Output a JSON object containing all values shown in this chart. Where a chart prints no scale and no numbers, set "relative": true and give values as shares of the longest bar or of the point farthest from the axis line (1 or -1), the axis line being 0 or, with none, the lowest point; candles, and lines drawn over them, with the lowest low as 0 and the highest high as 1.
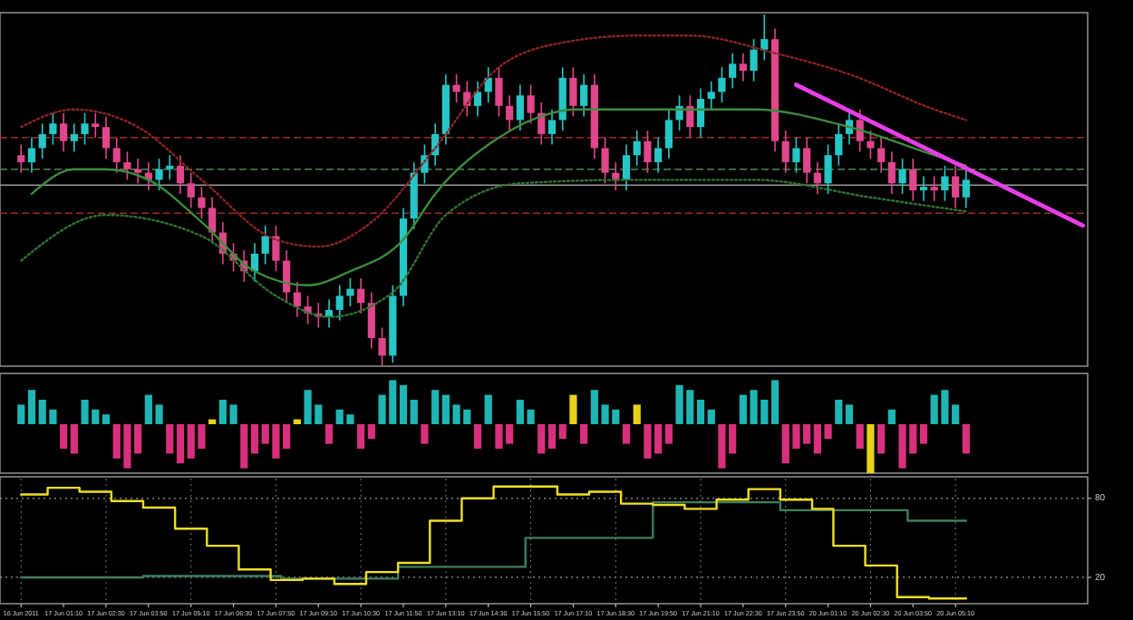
{
  "chart_data": [
    {
      "type": "candlestick",
      "relative": true,
      "categories": [
        null,
        null,
        null,
        null,
        null,
        null,
        null,
        null,
        null,
        null,
        null,
        null,
        null,
        null,
        null,
        null,
        null,
        null,
        null,
        null,
        null,
        null,
        null,
        null,
        null,
        null,
        null,
        null,
        null,
        null,
        null,
        null,
        null,
        null,
        null,
        null,
        null,
        null,
        null,
        null,
        null,
        null,
        null,
        null,
        null,
        null,
        null,
        null,
        null,
        null,
        null,
        null,
        null,
        null,
        null,
        null,
        null,
        null,
        null,
        null,
        null,
        null,
        null,
        null,
        null,
        null,
        null,
        null,
        null,
        null,
        null,
        null,
        null,
        null,
        null,
        null,
        null,
        null,
        null,
        null,
        null,
        null,
        null,
        null,
        null,
        null,
        null,
        null,
        null,
        null,
        null,
        null,
        null,
        null,
        null,
        null,
        null,
        null,
        null,
        null,
        null
      ],
      "ohlc": [
        [
          0.6,
          0.63,
          0.55,
          0.58
        ],
        [
          0.58,
          0.65,
          0.55,
          0.62
        ],
        [
          0.62,
          0.69,
          0.59,
          0.66
        ],
        [
          0.66,
          0.72,
          0.63,
          0.69
        ],
        [
          0.69,
          0.72,
          0.61,
          0.64
        ],
        [
          0.64,
          0.69,
          0.61,
          0.66
        ],
        [
          0.66,
          0.72,
          0.63,
          0.69
        ],
        [
          0.69,
          0.72,
          0.65,
          0.68
        ],
        [
          0.68,
          0.71,
          0.59,
          0.62
        ],
        [
          0.62,
          0.65,
          0.55,
          0.58
        ],
        [
          0.58,
          0.61,
          0.53,
          0.56
        ],
        [
          0.56,
          0.59,
          0.52,
          0.55
        ],
        [
          0.55,
          0.58,
          0.5,
          0.53
        ],
        [
          0.53,
          0.59,
          0.5,
          0.56
        ],
        [
          0.56,
          0.6,
          0.53,
          0.57
        ],
        [
          0.57,
          0.6,
          0.49,
          0.52
        ],
        [
          0.52,
          0.55,
          0.45,
          0.48
        ],
        [
          0.48,
          0.51,
          0.42,
          0.45
        ],
        [
          0.45,
          0.48,
          0.35,
          0.38
        ],
        [
          0.38,
          0.41,
          0.29,
          0.32
        ],
        [
          0.32,
          0.35,
          0.27,
          0.3
        ],
        [
          0.3,
          0.33,
          0.24,
          0.27
        ],
        [
          0.27,
          0.35,
          0.24,
          0.32
        ],
        [
          0.32,
          0.4,
          0.29,
          0.37
        ],
        [
          0.37,
          0.4,
          0.27,
          0.3
        ],
        [
          0.3,
          0.33,
          0.18,
          0.21
        ],
        [
          0.21,
          0.24,
          0.14,
          0.17
        ],
        [
          0.17,
          0.2,
          0.12,
          0.15
        ],
        [
          0.15,
          0.18,
          0.11,
          0.14
        ],
        [
          0.14,
          0.19,
          0.11,
          0.16
        ],
        [
          0.16,
          0.23,
          0.13,
          0.2
        ],
        [
          0.2,
          0.25,
          0.17,
          0.22
        ],
        [
          0.22,
          0.25,
          0.15,
          0.18
        ],
        [
          0.18,
          0.21,
          0.05,
          0.08
        ],
        [
          0.08,
          0.11,
          0,
          0.03
        ],
        [
          0.03,
          0.23,
          0.01,
          0.2
        ],
        [
          0.2,
          0.45,
          0.17,
          0.42
        ],
        [
          0.42,
          0.58,
          0.39,
          0.55
        ],
        [
          0.55,
          0.63,
          0.52,
          0.6
        ],
        [
          0.6,
          0.69,
          0.57,
          0.66
        ],
        [
          0.66,
          0.83,
          0.63,
          0.8
        ],
        [
          0.8,
          0.83,
          0.75,
          0.78
        ],
        [
          0.78,
          0.81,
          0.71,
          0.74
        ],
        [
          0.74,
          0.81,
          0.71,
          0.78
        ],
        [
          0.78,
          0.85,
          0.75,
          0.82
        ],
        [
          0.82,
          0.85,
          0.71,
          0.74
        ],
        [
          0.74,
          0.77,
          0.67,
          0.7
        ],
        [
          0.7,
          0.8,
          0.67,
          0.77
        ],
        [
          0.77,
          0.8,
          0.69,
          0.72
        ],
        [
          0.72,
          0.75,
          0.63,
          0.66
        ],
        [
          0.66,
          0.73,
          0.63,
          0.7
        ],
        [
          0.7,
          0.85,
          0.67,
          0.82
        ],
        [
          0.82,
          0.85,
          0.71,
          0.74
        ],
        [
          0.74,
          0.83,
          0.71,
          0.8
        ],
        [
          0.8,
          0.83,
          0.59,
          0.62
        ],
        [
          0.62,
          0.65,
          0.52,
          0.55
        ],
        [
          0.55,
          0.58,
          0.5,
          0.53
        ],
        [
          0.53,
          0.63,
          0.5,
          0.6
        ],
        [
          0.6,
          0.67,
          0.57,
          0.64
        ],
        [
          0.64,
          0.67,
          0.55,
          0.58
        ],
        [
          0.58,
          0.65,
          0.55,
          0.62
        ],
        [
          0.62,
          0.73,
          0.59,
          0.7
        ],
        [
          0.7,
          0.77,
          0.67,
          0.74
        ],
        [
          0.74,
          0.77,
          0.65,
          0.68
        ],
        [
          0.68,
          0.79,
          0.65,
          0.76
        ],
        [
          0.76,
          0.81,
          0.73,
          0.78
        ],
        [
          0.78,
          0.85,
          0.75,
          0.82
        ],
        [
          0.82,
          0.89,
          0.79,
          0.86
        ],
        [
          0.86,
          0.89,
          0.81,
          0.84
        ],
        [
          0.84,
          0.93,
          0.81,
          0.9
        ],
        [
          0.9,
          1,
          0.87,
          0.93
        ],
        [
          0.93,
          0.96,
          0.61,
          0.64
        ],
        [
          0.64,
          0.67,
          0.55,
          0.58
        ],
        [
          0.58,
          0.65,
          0.55,
          0.62
        ],
        [
          0.62,
          0.65,
          0.52,
          0.55
        ],
        [
          0.55,
          0.58,
          0.49,
          0.52
        ],
        [
          0.52,
          0.63,
          0.49,
          0.6
        ],
        [
          0.6,
          0.69,
          0.57,
          0.66
        ],
        [
          0.66,
          0.73,
          0.63,
          0.7
        ],
        [
          0.7,
          0.73,
          0.61,
          0.64
        ],
        [
          0.64,
          0.67,
          0.59,
          0.62
        ],
        [
          0.62,
          0.65,
          0.55,
          0.58
        ],
        [
          0.58,
          0.61,
          0.49,
          0.52
        ],
        [
          0.52,
          0.59,
          0.49,
          0.56
        ],
        [
          0.56,
          0.59,
          0.47,
          0.5
        ],
        [
          0.5,
          0.54,
          0.47,
          0.51
        ],
        [
          0.51,
          0.54,
          0.47,
          0.5
        ],
        [
          0.5,
          0.57,
          0.47,
          0.54
        ],
        [
          0.54,
          0.57,
          0.45,
          0.48
        ],
        [
          0.48,
          0.56,
          0.45,
          0.53
        ],
        null,
        null,
        null,
        null,
        null,
        null,
        null,
        null,
        null,
        null,
        null
      ],
      "colors": [
        "#e0468c",
        "#26c6c6",
        "#26c6c6",
        "#26c6c6",
        "#e0468c",
        "#26c6c6",
        "#26c6c6",
        "#e0468c",
        "#e0468c",
        "#e0468c",
        "#e0468c",
        "#e0468c",
        "#e0468c",
        "#26c6c6",
        "#26c6c6",
        "#e0468c",
        "#e0468c",
        "#e0468c",
        "#e0468c",
        "#e0468c",
        "#e0468c",
        "#e0468c",
        "#26c6c6",
        "#26c6c6",
        "#e0468c",
        "#e0468c",
        "#e0468c",
        "#e0468c",
        "#e0468c",
        "#26c6c6",
        "#26c6c6",
        "#26c6c6",
        "#e0468c",
        "#e0468c",
        "#e0468c",
        "#26c6c6",
        "#26c6c6",
        "#26c6c6",
        "#26c6c6",
        "#26c6c6",
        "#26c6c6",
        "#e0468c",
        "#e0468c",
        "#26c6c6",
        "#26c6c6",
        "#e0468c",
        "#e0468c",
        "#26c6c6",
        "#e0468c",
        "#e0468c",
        "#26c6c6",
        "#26c6c6",
        "#e0468c",
        "#26c6c6",
        "#e0468c",
        "#e0468c",
        "#e0468c",
        "#26c6c6",
        "#26c6c6",
        "#e0468c",
        "#26c6c6",
        "#26c6c6",
        "#26c6c6",
        "#e0468c",
        "#26c6c6",
        "#26c6c6",
        "#26c6c6",
        "#26c6c6",
        "#e0468c",
        "#26c6c6",
        "#26c6c6",
        "#e0468c",
        "#e0468c",
        "#26c6c6",
        "#e0468c",
        "#e0468c",
        "#26c6c6",
        "#26c6c6",
        "#26c6c6",
        "#e0468c",
        "#e0468c",
        "#e0468c",
        "#e0468c",
        "#26c6c6",
        "#e0468c",
        "#26c6c6",
        "#e0468c",
        "#26c6c6",
        "#e0468c",
        "#26c6c6",
        null,
        null,
        null,
        null,
        null,
        null,
        null,
        null,
        null,
        null,
        null
      ],
      "series": [
        {
          "type": "line",
          "color": "#3c8c3c",
          "line_style": "solid",
          "values": [
            null,
            0.49,
            null,
            null,
            null,
            0.56,
            null,
            null,
            0.56,
            null,
            null,
            null,
            0.53,
            null,
            null,
            null,
            null,
            0.41,
            null,
            null,
            null,
            null,
            0.27,
            null,
            null,
            null,
            null,
            0.23,
            null,
            null,
            null,
            0.27,
            null,
            null,
            null,
            null,
            0.36,
            null,
            null,
            0.49,
            null,
            null,
            null,
            null,
            null,
            0.65,
            null,
            null,
            null,
            null,
            0.72,
            null,
            0.73,
            null,
            null,
            null,
            null,
            null,
            null,
            null,
            null,
            null,
            null,
            null,
            null,
            null,
            null,
            null,
            null,
            0.73,
            null,
            null,
            null,
            null,
            null,
            null,
            null,
            null,
            0.68,
            null,
            null,
            null,
            null,
            null,
            null,
            null,
            0.6,
            null,
            null,
            0.57,
            null,
            null,
            null,
            null,
            null,
            null,
            null,
            null,
            null,
            null,
            null
          ]
        },
        {
          "type": "line",
          "color": "#8c2424",
          "line_style": "dotted",
          "values": [
            0.68,
            null,
            null,
            null,
            null,
            0.73,
            null,
            null,
            null,
            null,
            null,
            0.68,
            null,
            null,
            null,
            null,
            null,
            0.53,
            null,
            null,
            null,
            null,
            null,
            null,
            0.36,
            null,
            null,
            null,
            0.34,
            null,
            null,
            null,
            null,
            0.41,
            null,
            null,
            null,
            null,
            null,
            0.62,
            null,
            null,
            null,
            null,
            null,
            0.85,
            null,
            null,
            null,
            null,
            null,
            0.92,
            null,
            null,
            null,
            null,
            null,
            null,
            0.94,
            null,
            null,
            null,
            null,
            0.94,
            null,
            null,
            null,
            null,
            null,
            null,
            null,
            0.89,
            null,
            null,
            null,
            null,
            null,
            null,
            0.83,
            null,
            null,
            null,
            null,
            null,
            null,
            null,
            0.73,
            null,
            null,
            0.7,
            null,
            null,
            null,
            null,
            null,
            null,
            null,
            null,
            null,
            null,
            null
          ]
        },
        {
          "type": "line",
          "color": "#2f742f",
          "line_style": "dotted",
          "values": [
            0.3,
            null,
            null,
            null,
            null,
            null,
            null,
            null,
            0.43,
            null,
            null,
            null,
            null,
            null,
            null,
            null,
            null,
            0.37,
            null,
            null,
            null,
            null,
            null,
            null,
            0.2,
            null,
            null,
            null,
            null,
            0.14,
            null,
            null,
            null,
            null,
            null,
            0.21,
            null,
            null,
            null,
            null,
            0.43,
            null,
            null,
            null,
            null,
            null,
            null,
            0.52,
            null,
            null,
            null,
            null,
            null,
            null,
            null,
            null,
            null,
            null,
            0.53,
            null,
            null,
            null,
            null,
            null,
            null,
            null,
            null,
            null,
            null,
            0.53,
            null,
            null,
            null,
            null,
            null,
            null,
            null,
            null,
            null,
            null,
            0.48,
            null,
            null,
            null,
            null,
            null,
            null,
            null,
            null,
            0.44,
            null,
            null,
            null,
            null,
            null,
            null,
            null,
            null,
            null,
            null,
            null
          ]
        },
        {
          "type": "line",
          "color": "#e83ee8",
          "line_style": "solid",
          "values": [
            null,
            null,
            null,
            null,
            null,
            null,
            null,
            null,
            null,
            null,
            null,
            null,
            null,
            null,
            null,
            null,
            null,
            null,
            null,
            null,
            null,
            null,
            null,
            null,
            null,
            null,
            null,
            null,
            null,
            null,
            null,
            null,
            null,
            null,
            null,
            null,
            null,
            null,
            null,
            null,
            null,
            null,
            null,
            null,
            null,
            null,
            null,
            null,
            null,
            null,
            null,
            null,
            null,
            null,
            null,
            null,
            null,
            null,
            null,
            null,
            null,
            null,
            null,
            null,
            null,
            null,
            null,
            null,
            null,
            null,
            null,
            null,
            null,
            0.8,
            null,
            null,
            null,
            null,
            null,
            null,
            null,
            null,
            null,
            null,
            null,
            null,
            null,
            null,
            null,
            null,
            null,
            null,
            null,
            null,
            null,
            null,
            null,
            null,
            null,
            null,
            0.4
          ]
        }
      ],
      "ref_lines": [
        {
          "axis": "y",
          "value": 0.65,
          "color": "#a02828",
          "line_style": "dashed"
        },
        {
          "axis": "y",
          "value": 0.56,
          "color": "#4a8a4a",
          "line_style": "dashed"
        },
        {
          "axis": "y",
          "value": 0.515,
          "color": "#9a9a9a",
          "line_style": "solid"
        },
        {
          "axis": "y",
          "value": 0.435,
          "color": "#a02828",
          "line_style": "dashed"
        }
      ]
    },
    {
      "type": "bar",
      "relative": true,
      "categories": [
        null,
        null,
        null,
        null,
        null,
        null,
        null,
        null,
        null,
        null,
        null,
        null,
        null,
        null,
        null,
        null,
        null,
        null,
        null,
        null,
        null,
        null,
        null,
        null,
        null,
        null,
        null,
        null,
        null,
        null,
        null,
        null,
        null,
        null,
        null,
        null,
        null,
        null,
        null,
        null,
        null,
        null,
        null,
        null,
        null,
        null,
        null,
        null,
        null,
        null,
        null,
        null,
        null,
        null,
        null,
        null,
        null,
        null,
        null,
        null,
        null,
        null,
        null,
        null,
        null,
        null,
        null,
        null,
        null,
        null,
        null,
        null,
        null,
        null,
        null,
        null,
        null,
        null,
        null,
        null,
        null,
        null,
        null,
        null,
        null,
        null,
        null,
        null,
        null,
        null,
        null,
        null,
        null,
        null,
        null,
        null,
        null,
        null,
        null,
        null,
        null
      ],
      "values": [
        0.4,
        0.7,
        0.5,
        0.3,
        -0.5,
        -0.6,
        0.5,
        0.3,
        0.2,
        -0.7,
        -0.9,
        -0.6,
        0.6,
        0.4,
        -0.6,
        -0.8,
        -0.7,
        -0.5,
        0.1,
        0.5,
        0.4,
        -0.9,
        -0.6,
        -0.4,
        -0.7,
        -0.5,
        0.1,
        0.7,
        0.4,
        -0.4,
        0.3,
        0.2,
        -0.5,
        -0.3,
        0.6,
        0.9,
        0.8,
        0.5,
        -0.4,
        0.7,
        0.6,
        0.4,
        0.3,
        -0.5,
        0.6,
        -0.5,
        -0.4,
        0.5,
        0.3,
        -0.6,
        -0.5,
        -0.3,
        0.6,
        -0.4,
        0.7,
        0.4,
        0.3,
        -0.4,
        0.4,
        -0.7,
        -0.6,
        -0.4,
        0.8,
        0.7,
        0.5,
        0.3,
        -0.9,
        -0.6,
        0.6,
        0.7,
        0.5,
        0.9,
        -0.8,
        -0.5,
        -0.4,
        -0.6,
        -0.3,
        0.5,
        0.4,
        -0.5,
        -1,
        -0.6,
        0.3,
        -0.9,
        -0.6,
        -0.4,
        0.6,
        0.7,
        0.4,
        -0.6,
        null,
        null,
        null,
        null,
        null,
        null,
        null,
        null,
        null,
        null,
        null
      ],
      "colors": [
        "#1fb5b5",
        "#1fb5b5",
        "#1fb5b5",
        "#1fb5b5",
        "#d9307e",
        "#d9307e",
        "#1fb5b5",
        "#1fb5b5",
        "#1fb5b5",
        "#d9307e",
        "#d9307e",
        "#d9307e",
        "#1fb5b5",
        "#1fb5b5",
        "#d9307e",
        "#d9307e",
        "#d9307e",
        "#d9307e",
        "#e6d21a",
        "#1fb5b5",
        "#1fb5b5",
        "#d9307e",
        "#d9307e",
        "#d9307e",
        "#d9307e",
        "#d9307e",
        "#e6d21a",
        "#1fb5b5",
        "#1fb5b5",
        "#d9307e",
        "#1fb5b5",
        "#1fb5b5",
        "#d9307e",
        "#d9307e",
        "#1fb5b5",
        "#1fb5b5",
        "#1fb5b5",
        "#1fb5b5",
        "#d9307e",
        "#1fb5b5",
        "#1fb5b5",
        "#1fb5b5",
        "#1fb5b5",
        "#d9307e",
        "#1fb5b5",
        "#d9307e",
        "#d9307e",
        "#1fb5b5",
        "#1fb5b5",
        "#d9307e",
        "#d9307e",
        "#d9307e",
        "#e6d21a",
        "#d9307e",
        "#1fb5b5",
        "#1fb5b5",
        "#1fb5b5",
        "#d9307e",
        "#e6d21a",
        "#d9307e",
        "#d9307e",
        "#d9307e",
        "#1fb5b5",
        "#1fb5b5",
        "#1fb5b5",
        "#1fb5b5",
        "#d9307e",
        "#d9307e",
        "#1fb5b5",
        "#1fb5b5",
        "#1fb5b5",
        "#1fb5b5",
        "#d9307e",
        "#d9307e",
        "#d9307e",
        "#d9307e",
        "#d9307e",
        "#1fb5b5",
        "#1fb5b5",
        "#d9307e",
        "#e6d21a",
        "#d9307e",
        "#1fb5b5",
        "#d9307e",
        "#d9307e",
        "#d9307e",
        "#1fb5b5",
        "#1fb5b5",
        "#1fb5b5",
        "#d9307e",
        null,
        null,
        null,
        null,
        null,
        null,
        null,
        null,
        null,
        null,
        null
      ]
    },
    {
      "type": "step",
      "ylim": [
        0,
        95
      ],
      "yticks": [
        20,
        80
      ],
      "grid": true,
      "categories": [
        "16 Jun 2011",
        null,
        null,
        null,
        "17 Jun 01:10",
        null,
        null,
        null,
        "17 Jun 02:30",
        null,
        null,
        null,
        "17 Jun 03:50",
        null,
        null,
        null,
        "17 Jun 05:10",
        null,
        null,
        null,
        "17 Jun 06:30",
        null,
        null,
        null,
        "17 Jun 07:50",
        null,
        null,
        null,
        "17 Jun 09:10",
        null,
        null,
        null,
        "17 Jun 10:30",
        null,
        null,
        null,
        "17 Jun 11:50",
        null,
        null,
        null,
        "17 Jun 13:10",
        null,
        null,
        null,
        "17 Jun 14:30",
        null,
        null,
        null,
        "17 Jun 15:50",
        null,
        null,
        null,
        "17 Jun 17:10",
        null,
        null,
        null,
        "17 Jun 18:30",
        null,
        null,
        null,
        "17 Jun 19:50",
        null,
        null,
        null,
        "17 Jun 21:10",
        null,
        null,
        null,
        "17 Jun 22:30",
        null,
        null,
        null,
        "17 Jun 23:50",
        null,
        null,
        null,
        "20 Jun 01:10",
        null,
        null,
        null,
        "20 Jun 02:30",
        null,
        null,
        null,
        "20 Jun 03:50",
        null,
        null,
        null,
        "20 Jun 05:10",
        null,
        null,
        null,
        null,
        null,
        null,
        null,
        null,
        null,
        null,
        null,
        null
      ],
      "series": [
        {
          "color": "#3f7f5f",
          "values": [
            20,
            20,
            20,
            20,
            20,
            20,
            20,
            20,
            20,
            20,
            20,
            20,
            21,
            21,
            21,
            21,
            21,
            21,
            21,
            21,
            21,
            21,
            21,
            21,
            21,
            19,
            19,
            19,
            19,
            19,
            19,
            19,
            19,
            19,
            19,
            19,
            28,
            28,
            28,
            28,
            28,
            28,
            28,
            28,
            28,
            28,
            28,
            28,
            50,
            50,
            50,
            50,
            50,
            50,
            50,
            50,
            50,
            50,
            50,
            50,
            77,
            77,
            77,
            77,
            77,
            77,
            77,
            77,
            77,
            77,
            77,
            77,
            71,
            71,
            71,
            71,
            71,
            71,
            71,
            71,
            71,
            71,
            71,
            71,
            63,
            63,
            63,
            63,
            63,
            63,
            null,
            null,
            null,
            null,
            null,
            null,
            null,
            null,
            null,
            null,
            null
          ]
        },
        {
          "color": "#f0e020",
          "values": [
            83,
            83,
            83,
            88,
            88,
            88,
            85,
            85,
            85,
            78,
            78,
            78,
            73,
            73,
            73,
            57,
            57,
            57,
            44,
            44,
            44,
            26,
            26,
            26,
            18,
            18,
            18,
            19,
            19,
            19,
            15,
            15,
            15,
            24,
            24,
            24,
            31,
            31,
            31,
            63,
            63,
            63,
            80,
            80,
            80,
            89,
            89,
            89,
            89,
            89,
            89,
            83,
            83,
            83,
            85,
            85,
            85,
            76,
            76,
            76,
            75,
            75,
            75,
            72,
            72,
            72,
            79,
            79,
            79,
            87,
            87,
            87,
            79,
            79,
            79,
            72,
            72,
            44,
            44,
            44,
            29,
            29,
            29,
            5,
            5,
            5,
            4,
            4,
            4,
            4,
            null,
            null,
            null,
            null,
            null,
            null,
            null,
            null,
            null,
            null,
            null
          ]
        }
      ]
    }
  ]
}
